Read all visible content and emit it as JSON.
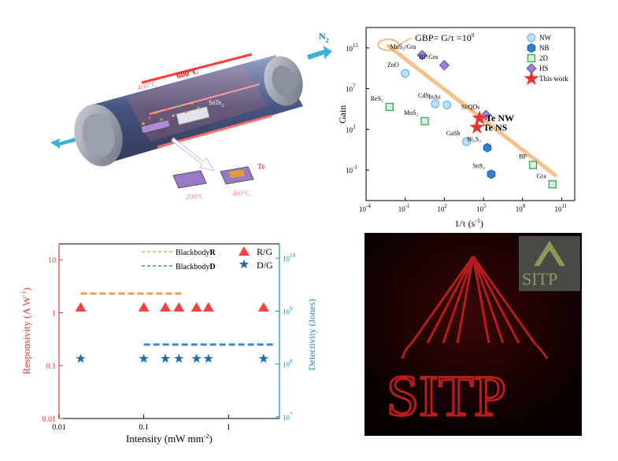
{
  "furnace": {
    "gas_label": "N",
    "gas_sub": "2",
    "temp_hot": "600°C",
    "temp_low": "400°C",
    "source_label": "SnTe",
    "source_sub": "2",
    "product_label": "Te",
    "substrate_1_temp": "200°C",
    "substrate_2_temp": "400°C",
    "colors": {
      "tube": "#4a5a80",
      "hot": "#e02020",
      "sample": "#c98a3a"
    }
  },
  "gbp_chart": {
    "type": "scatter",
    "title_formula": "GBP= G/τ =10",
    "title_exp": "9",
    "xlabel": "1/τ (s",
    "xlabel_sup": "-1",
    "xlabel_close": ")",
    "ylabel": "Gain",
    "x_ticks": [
      {
        "base": "10",
        "exp": "-4",
        "v": -4
      },
      {
        "base": "10",
        "exp": "-1",
        "v": -1
      },
      {
        "base": "10",
        "exp": "2",
        "v": 2
      },
      {
        "base": "10",
        "exp": "5",
        "v": 5
      },
      {
        "base": "10",
        "exp": "8",
        "v": 8
      },
      {
        "base": "10",
        "exp": "11",
        "v": 11
      }
    ],
    "y_ticks": [
      {
        "base": "10",
        "exp": "-1",
        "v": -1
      },
      {
        "base": "10",
        "exp": "3",
        "v": 3
      },
      {
        "base": "10",
        "exp": "7",
        "v": 7
      },
      {
        "base": "10",
        "exp": "11",
        "v": 11
      }
    ],
    "xlim_log": [
      -4,
      12
    ],
    "ylim_log": [
      -4,
      13
    ],
    "legend": [
      {
        "key": "NW",
        "label": "NW",
        "color": "#5aaee8"
      },
      {
        "key": "NB",
        "label": "NB",
        "color": "#2e7fd0"
      },
      {
        "key": "2D",
        "label": "2D",
        "color": "#3aa35a"
      },
      {
        "key": "HS",
        "label": "HS",
        "color": "#9b7fd0"
      },
      {
        "key": "TW",
        "label": "This work",
        "color": "#ee3333"
      }
    ],
    "points": [
      {
        "label": "ZnO",
        "type": "NW",
        "x": -1,
        "y": 8.5
      },
      {
        "label": "MoS₂/Gra",
        "type": "HS",
        "x": 0.3,
        "y": 10.3
      },
      {
        "label": "BP/Gra",
        "type": "HS",
        "x": 2,
        "y": 9.3
      },
      {
        "label": "CdS",
        "type": "NW",
        "x": 1.3,
        "y": 5.5
      },
      {
        "label": "InAs",
        "type": "NW",
        "x": 2.2,
        "y": 5.4
      },
      {
        "label": "ReS₂",
        "type": "2D",
        "x": -2.2,
        "y": 5.2
      },
      {
        "label": "MoS₂",
        "type": "2D",
        "x": 0.5,
        "y": 3.8
      },
      {
        "label": "Si/QDs",
        "type": "HS",
        "x": 5.2,
        "y": 4.4
      },
      {
        "label": "Te NW",
        "type": "TW",
        "x": 4.7,
        "y": 4.1
      },
      {
        "label": "Te NS",
        "type": "TW",
        "x": 4.5,
        "y": 3.2
      },
      {
        "label": "GaSb",
        "type": "NW",
        "x": 3.7,
        "y": 1.8
      },
      {
        "label": "Bi₂S₃",
        "type": "NB",
        "x": 5.3,
        "y": 1.2
      },
      {
        "label": "SnS₂",
        "type": "NB",
        "x": 5.6,
        "y": -1.4
      },
      {
        "label": "BP",
        "type": "2D",
        "x": 8.8,
        "y": -0.5
      },
      {
        "label": "Gra",
        "type": "2D",
        "x": 10.3,
        "y": -2.4
      }
    ],
    "gbp_line": {
      "x": [
        -2.3,
        10.5
      ],
      "y": [
        11.2,
        -1.5
      ],
      "color": "#f5c08a"
    }
  },
  "resp_chart": {
    "type": "scatter",
    "xlabel": "Intensity (mW mm",
    "xlabel_sup": "-2",
    "xlabel_close": ")",
    "ylabel": "Responsivity (A W",
    "ylabel_sup": "-1",
    "ylabel_close": ")",
    "y2label": "Detectivity (Jones)",
    "x_ticks": [
      "0.01",
      "0.1",
      "1"
    ],
    "y_ticks": [
      "0.01",
      "0.1",
      "1",
      "10"
    ],
    "y2_ticks": [
      {
        "base": "10",
        "exp": "7"
      },
      {
        "base": "10",
        "exp": "8"
      },
      {
        "base": "10",
        "exp": "9"
      },
      {
        "base": "10",
        "exp": "10"
      }
    ],
    "xlim": [
      0.01,
      4.0
    ],
    "ylim": [
      0.01,
      20
    ],
    "legend": {
      "bb_r_text": "Blackbody",
      "bb_r_bold": "R",
      "bb_d_text": "Blackbody",
      "bb_d_bold": "D",
      "rg": "R/G",
      "dg": "D/G"
    },
    "colors": {
      "r": "#ee4444",
      "d": "#1e6fa8",
      "bb_r": "#f0a050",
      "bb_d": "#2a8ee0",
      "axis_left": "#e03b3b",
      "axis_right": "#1a8ab8"
    },
    "x_values": [
      0.018,
      0.1,
      0.18,
      0.26,
      0.42,
      0.58,
      2.6
    ],
    "responsivity": [
      1.25,
      1.25,
      1.25,
      1.25,
      1.25,
      1.25,
      1.25
    ],
    "detectivity_as_left": [
      0.135,
      0.135,
      0.135,
      0.135,
      0.135,
      0.135,
      0.135
    ],
    "blackbody_r": {
      "x": [
        0.018,
        0.3
      ],
      "y": 2.3
    },
    "blackbody_d": {
      "x": [
        0.1,
        3.5
      ],
      "y": 0.25
    }
  },
  "image_panel": {
    "logo_text": "SITP",
    "image_text": "SITP"
  }
}
